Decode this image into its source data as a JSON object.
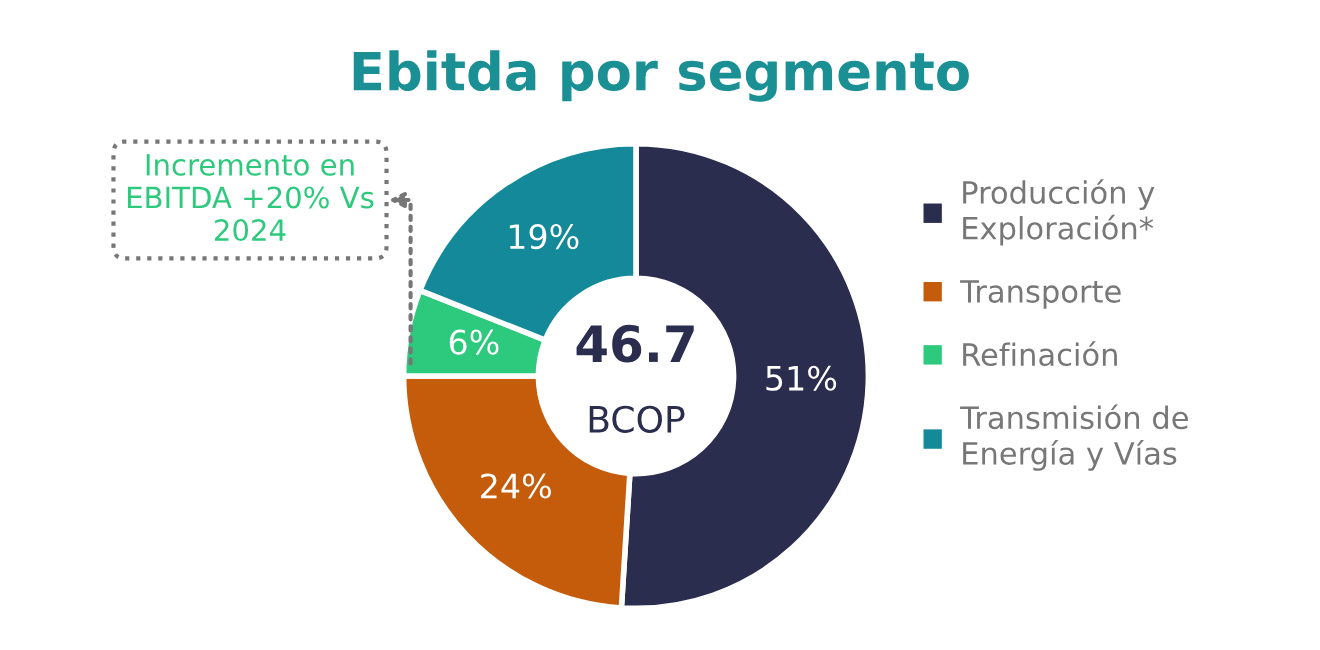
{
  "chart_data": {
    "type": "donut",
    "title": "Ebitda por segmento",
    "categories": [
      "Producción y\nExploración*",
      "Transporte",
      "Refinación",
      "Transmisión de\nEnergía y Vías"
    ],
    "values": [
      51,
      24,
      6,
      19
    ],
    "colors": [
      "#2b2d4e",
      "#c45c0c",
      "#2dc97c",
      "#13899a"
    ],
    "value_labels": [
      "51%",
      "24%",
      "6%",
      "19%"
    ],
    "legend": "right",
    "annotations": [
      "46.7",
      "BCOP",
      "Incremento en\nEBITDA +20% Vs\n2024"
    ]
  }
}
